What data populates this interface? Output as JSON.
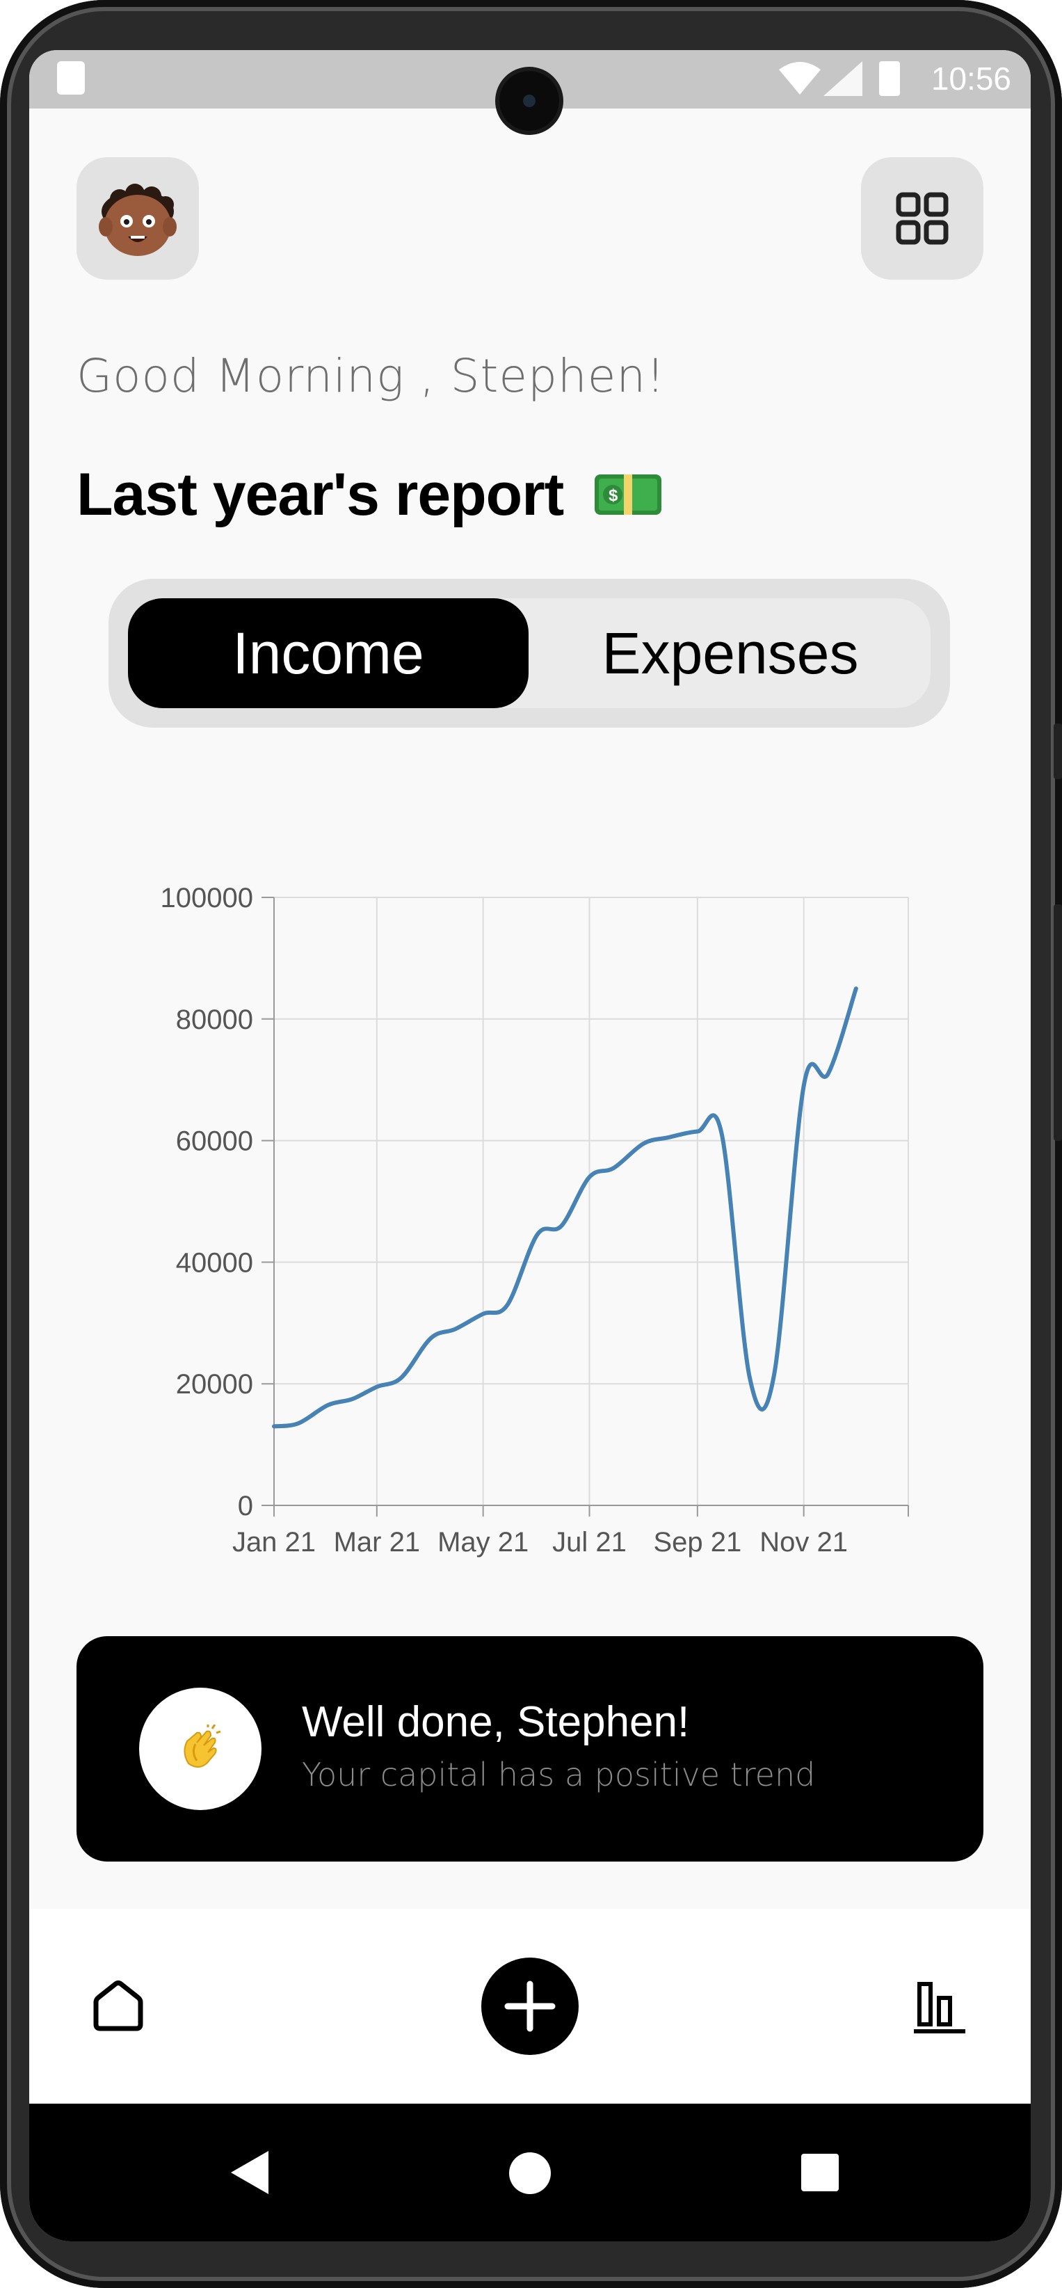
{
  "status_bar": {
    "time": "10:56"
  },
  "header": {
    "avatar_icon": "avatar-memoji-icon",
    "menu_icon": "grid-icon",
    "greeting": "Good Morning , Stephen!",
    "report_title": "Last year's report",
    "report_icon": "money-banknote-icon"
  },
  "segment": {
    "options": [
      "Income",
      "Expenses"
    ],
    "selected": "Income"
  },
  "chart_data": {
    "type": "line",
    "x": [
      "2021-01-01",
      "2021-01-15",
      "2021-02-01",
      "2021-02-15",
      "2021-03-01",
      "2021-03-15",
      "2021-04-01",
      "2021-04-15",
      "2021-05-01",
      "2021-05-15",
      "2021-06-01",
      "2021-06-15",
      "2021-07-01",
      "2021-07-15",
      "2021-08-01",
      "2021-08-15",
      "2021-09-01",
      "2021-09-15",
      "2021-10-01",
      "2021-10-15",
      "2021-11-01",
      "2021-11-15",
      "2021-12-01"
    ],
    "series": [
      {
        "values": [
          13000,
          13500,
          16500,
          17500,
          19500,
          21000,
          27500,
          29000,
          31500,
          33000,
          44500,
          46000,
          54000,
          55500,
          59500,
          60500,
          61500,
          61000,
          21000,
          21500,
          69000,
          71000,
          85000
        ]
      }
    ],
    "x_tick_labels": [
      "Jan 21",
      "Mar 21",
      "May 21",
      "Jul 21",
      "Sep 21",
      "Nov 21"
    ],
    "y_tick_labels": [
      "0",
      "20000",
      "40000",
      "60000",
      "80000",
      "100000"
    ],
    "ylim": [
      0,
      100000
    ],
    "grid": true,
    "line_color": "#4682b4"
  },
  "card": {
    "icon": "clapping-hands-icon",
    "title": "Well done, Stephen!",
    "subtitle": "Your capital has a positive trend"
  },
  "bottom_nav": {
    "items": [
      "home-icon",
      "add-icon",
      "stats-icon"
    ]
  },
  "colors": {
    "accent": "#000000",
    "background": "#f9f9f9",
    "chip": "#e2e2e2",
    "chart_line": "#4682b4"
  }
}
